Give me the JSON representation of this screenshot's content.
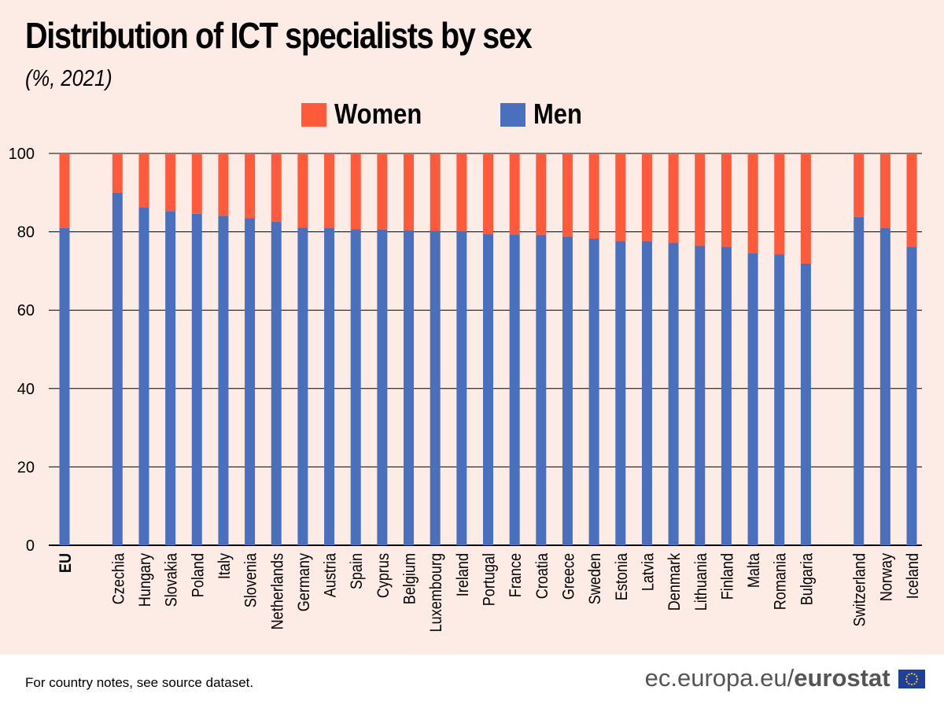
{
  "title": "Distribution of ICT specialists by sex",
  "subtitle": "(%, 2021)",
  "legend": {
    "women": "Women",
    "men": "Men"
  },
  "colors": {
    "women": "#ff5a3c",
    "men": "#4a6fbd",
    "background": "#fdebe6",
    "brand_text": "#555555",
    "flag_blue": "#1f3f99",
    "flag_star": "#ffcc00"
  },
  "footer": {
    "note": "For country notes, see source dataset.",
    "domain": "ec.europa.eu/",
    "brand": "eurostat"
  },
  "icons": {
    "brand_logo": "eu-flag-icon"
  },
  "chart_data": {
    "type": "bar",
    "stacked": true,
    "grid": true,
    "legend_position": "top-center",
    "ylim": [
      0,
      100
    ],
    "yticks": [
      0,
      20,
      40,
      60,
      80,
      100
    ],
    "bold_categories": [
      "EU"
    ],
    "groups": [
      [
        "EU"
      ],
      [
        "Czechia",
        "Hungary",
        "Slovakia",
        "Poland",
        "Italy",
        "Slovenia",
        "Netherlands",
        "Germany",
        "Austria",
        "Spain",
        "Cyprus",
        "Belgium",
        "Luxembourg",
        "Ireland",
        "Portugal",
        "France",
        "Croatia",
        "Greece",
        "Sweden",
        "Estonia",
        "Latvia",
        "Denmark",
        "Lithuania",
        "Finland",
        "Malta",
        "Romania",
        "Bulgaria"
      ],
      [
        "Switzerland",
        "Norway",
        "Iceland"
      ]
    ],
    "categories": [
      "EU",
      "Czechia",
      "Hungary",
      "Slovakia",
      "Poland",
      "Italy",
      "Slovenia",
      "Netherlands",
      "Germany",
      "Austria",
      "Spain",
      "Cyprus",
      "Belgium",
      "Luxembourg",
      "Ireland",
      "Portugal",
      "France",
      "Croatia",
      "Greece",
      "Sweden",
      "Estonia",
      "Latvia",
      "Denmark",
      "Lithuania",
      "Finland",
      "Malta",
      "Romania",
      "Bulgaria",
      "Switzerland",
      "Norway",
      "Iceland"
    ],
    "series": [
      {
        "name": "Men",
        "values": [
          81.0,
          90.0,
          86.3,
          85.3,
          84.6,
          84.1,
          83.5,
          82.6,
          81.1,
          81.0,
          80.7,
          80.6,
          80.4,
          80.3,
          80.1,
          79.4,
          79.3,
          79.2,
          78.8,
          78.3,
          77.6,
          77.6,
          77.2,
          76.4,
          76.1,
          74.5,
          74.2,
          71.9,
          83.8,
          81.0,
          76.1
        ]
      },
      {
        "name": "Women",
        "values": [
          19.0,
          10.0,
          13.7,
          14.7,
          15.4,
          15.9,
          16.5,
          17.4,
          18.9,
          19.0,
          19.3,
          19.4,
          19.6,
          19.7,
          19.9,
          20.6,
          20.7,
          20.8,
          21.2,
          21.7,
          22.4,
          22.4,
          22.8,
          23.6,
          23.9,
          25.5,
          25.8,
          28.1,
          16.2,
          19.0,
          23.9
        ]
      }
    ]
  }
}
